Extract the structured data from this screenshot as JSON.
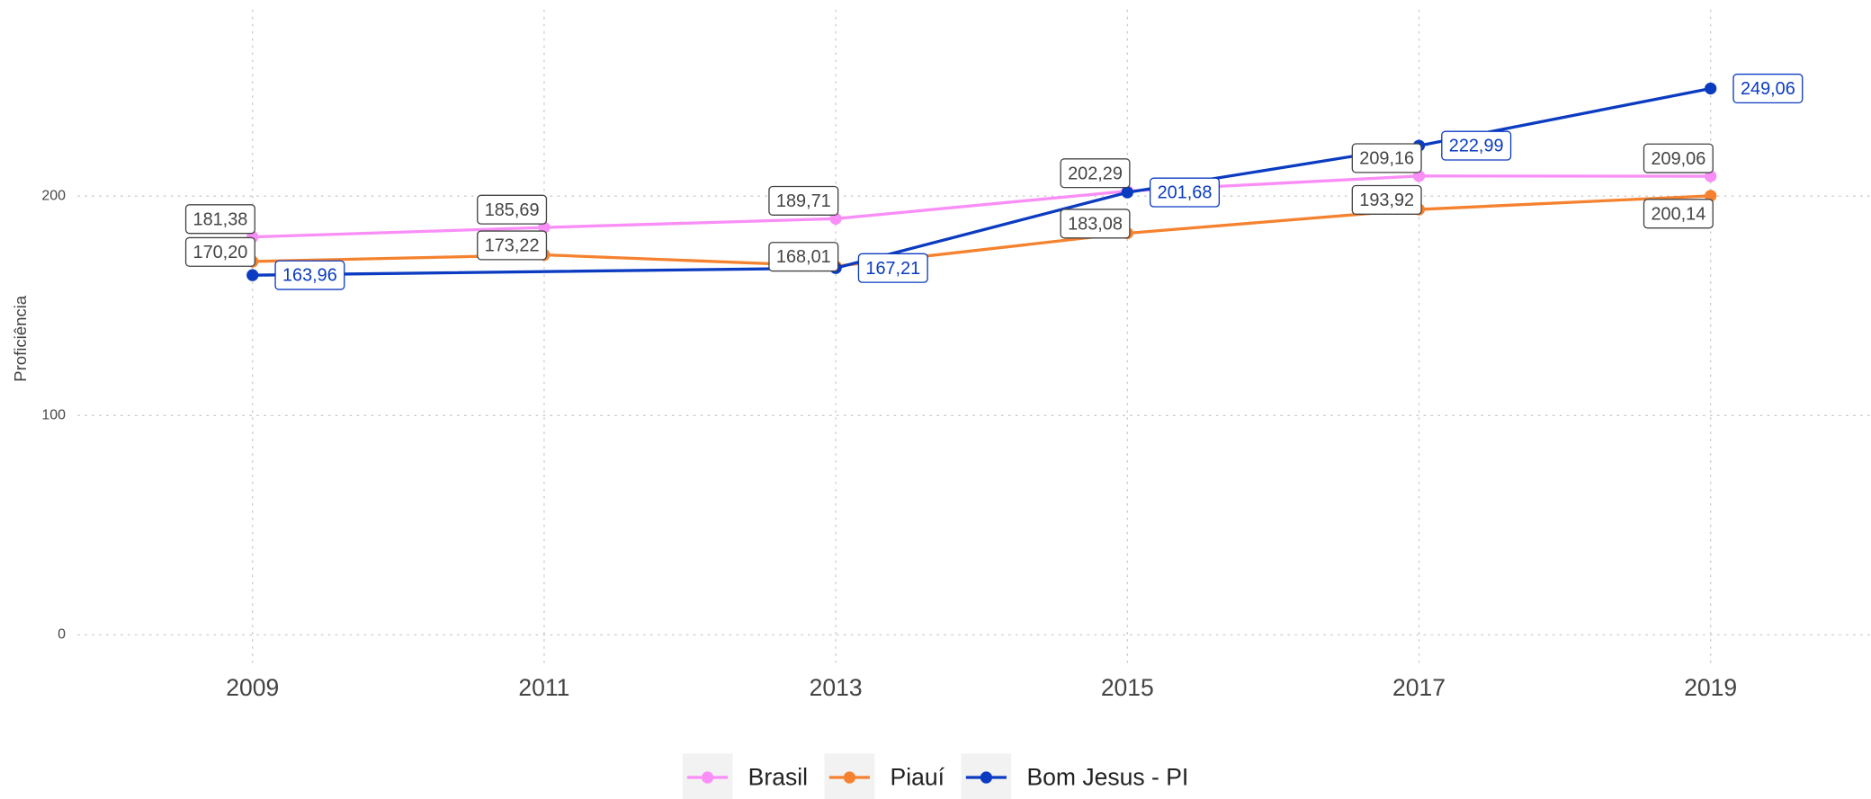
{
  "chart_data": {
    "type": "line",
    "y_label": "Proficiência",
    "xlim": [
      2007.8,
      2020.1
    ],
    "xticks": [
      2009,
      2011,
      2013,
      2015,
      2017,
      2019
    ],
    "ylim": [
      -15,
      285
    ],
    "yticks": [
      0,
      100,
      200
    ],
    "grid": true,
    "legend": "bottom",
    "series": [
      {
        "name": "Brasil",
        "color": "#f98ef7",
        "label_color": "#444444",
        "x": [
          2009,
          2011,
          2013,
          2015,
          2017,
          2019
        ],
        "values": [
          181.38,
          185.69,
          189.71,
          202.29,
          209.16,
          209.06
        ],
        "value_labels": [
          "181,38",
          "185,69",
          "189,71",
          "202,29",
          "209,16",
          "209,06"
        ]
      },
      {
        "name": "Piauí",
        "color": "#f5822f",
        "label_color": "#444444",
        "x": [
          2009,
          2011,
          2013,
          2015,
          2017,
          2019
        ],
        "values": [
          170.2,
          173.22,
          168.01,
          183.08,
          193.92,
          200.14
        ],
        "value_labels": [
          "170,20",
          "173,22",
          "168,01",
          "183,08",
          "193,92",
          "200,14"
        ]
      },
      {
        "name": "Bom Jesus - PI",
        "color": "#0b3bc1",
        "label_color": "#0b3bc1",
        "x": [
          2009,
          2013,
          2015,
          2017,
          2019
        ],
        "values": [
          163.96,
          167.21,
          201.68,
          222.99,
          249.06
        ],
        "value_labels": [
          "163,96",
          "167,21",
          "201,68",
          "222,99",
          "249,06"
        ]
      }
    ]
  }
}
